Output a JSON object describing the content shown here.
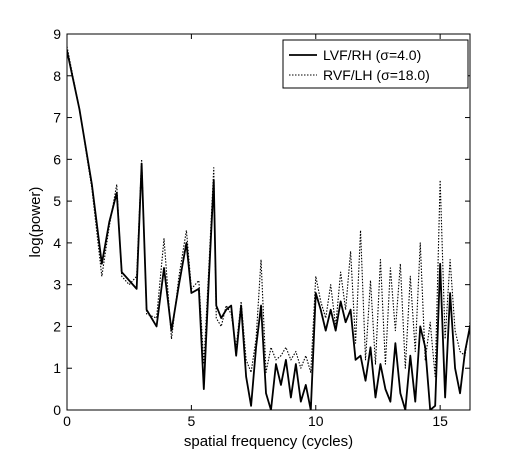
{
  "chart_data": {
    "type": "line",
    "xlabel": "spatial frequency (cycles)",
    "ylabel": "log(power)",
    "xlim": [
      0,
      16.2
    ],
    "ylim": [
      0,
      9
    ],
    "xticks": [
      0,
      5,
      10,
      15
    ],
    "yticks": [
      0,
      1,
      2,
      3,
      4,
      5,
      6,
      7,
      8,
      9
    ],
    "grid": false,
    "legend_position": "top-right",
    "colors": {
      "axis": "#000000",
      "background": "#ffffff",
      "series_1": "#000000",
      "series_2": "#000000"
    },
    "series": [
      {
        "name": "LVF/RH (σ=4.0)",
        "style": "solid",
        "x": [
          0,
          0.5,
          1.0,
          1.4,
          1.7,
          2.0,
          2.2,
          2.5,
          2.8,
          3.0,
          3.2,
          3.6,
          3.9,
          4.2,
          4.5,
          4.8,
          5.0,
          5.3,
          5.5,
          5.7,
          5.9,
          6.0,
          6.2,
          6.4,
          6.6,
          6.8,
          7.0,
          7.2,
          7.4,
          7.6,
          7.8,
          8.0,
          8.2,
          8.4,
          8.6,
          8.8,
          9.0,
          9.2,
          9.4,
          9.6,
          9.8,
          10.0,
          10.2,
          10.4,
          10.6,
          10.8,
          11.0,
          11.2,
          11.4,
          11.6,
          11.8,
          12.0,
          12.2,
          12.4,
          12.6,
          12.8,
          13.0,
          13.2,
          13.4,
          13.6,
          13.8,
          14.0,
          14.2,
          14.4,
          14.6,
          14.8,
          15.0,
          15.2,
          15.4,
          15.6,
          15.8,
          16.0,
          16.2
        ],
        "values": [
          8.6,
          7.2,
          5.4,
          3.5,
          4.5,
          5.2,
          3.3,
          3.1,
          2.9,
          5.9,
          2.4,
          2.0,
          3.4,
          1.9,
          3.0,
          4.0,
          2.8,
          2.9,
          0.5,
          3.1,
          5.5,
          2.5,
          2.2,
          2.4,
          2.5,
          1.3,
          2.5,
          0.8,
          0.1,
          1.5,
          2.5,
          0.4,
          0.0,
          1.1,
          0.6,
          1.2,
          0.3,
          1.1,
          0.2,
          0.6,
          0.0,
          2.8,
          2.4,
          1.9,
          2.4,
          1.9,
          2.6,
          2.1,
          2.4,
          1.2,
          1.3,
          0.7,
          1.5,
          0.3,
          1.1,
          0.5,
          0.2,
          1.6,
          0.4,
          0.0,
          1.3,
          0.2,
          2.0,
          1.5,
          0.0,
          0.1,
          3.5,
          0.3,
          2.8,
          1.0,
          0.4,
          1.4,
          2.0
        ]
      },
      {
        "name": "RVF/LH (σ=18.0)",
        "style": "dotted",
        "x": [
          0,
          0.5,
          1.0,
          1.4,
          1.7,
          2.0,
          2.2,
          2.5,
          2.8,
          3.0,
          3.2,
          3.6,
          3.9,
          4.2,
          4.5,
          4.8,
          5.0,
          5.3,
          5.5,
          5.7,
          5.9,
          6.0,
          6.2,
          6.4,
          6.6,
          6.8,
          7.0,
          7.2,
          7.4,
          7.6,
          7.8,
          8.0,
          8.2,
          8.4,
          8.6,
          8.8,
          9.0,
          9.2,
          9.4,
          9.6,
          9.8,
          10.0,
          10.2,
          10.4,
          10.6,
          10.8,
          11.0,
          11.2,
          11.4,
          11.6,
          11.8,
          12.0,
          12.2,
          12.4,
          12.6,
          12.8,
          13.0,
          13.2,
          13.4,
          13.6,
          13.8,
          14.0,
          14.2,
          14.4,
          14.6,
          14.8,
          15.0,
          15.2,
          15.4,
          15.6,
          15.8,
          16.0,
          16.2
        ],
        "values": [
          8.7,
          7.2,
          5.3,
          3.2,
          4.4,
          5.4,
          3.2,
          3.0,
          3.2,
          6.0,
          2.3,
          2.2,
          4.1,
          1.7,
          3.2,
          4.3,
          2.9,
          3.1,
          1.1,
          3.4,
          5.8,
          2.2,
          2.0,
          2.5,
          2.3,
          1.5,
          2.6,
          1.2,
          0.9,
          1.7,
          3.6,
          0.9,
          1.5,
          1.2,
          1.3,
          1.5,
          1.2,
          1.4,
          1.0,
          1.3,
          0.9,
          3.2,
          2.6,
          2.2,
          3.0,
          2.0,
          3.3,
          2.4,
          3.8,
          1.6,
          4.3,
          1.2,
          3.1,
          1.1,
          3.6,
          1.1,
          3.4,
          1.9,
          3.5,
          1.0,
          3.2,
          1.4,
          4.0,
          1.2,
          2.1,
          0.8,
          5.5,
          1.7,
          3.6,
          1.9,
          1.4,
          1.3,
          2.1
        ]
      }
    ]
  }
}
